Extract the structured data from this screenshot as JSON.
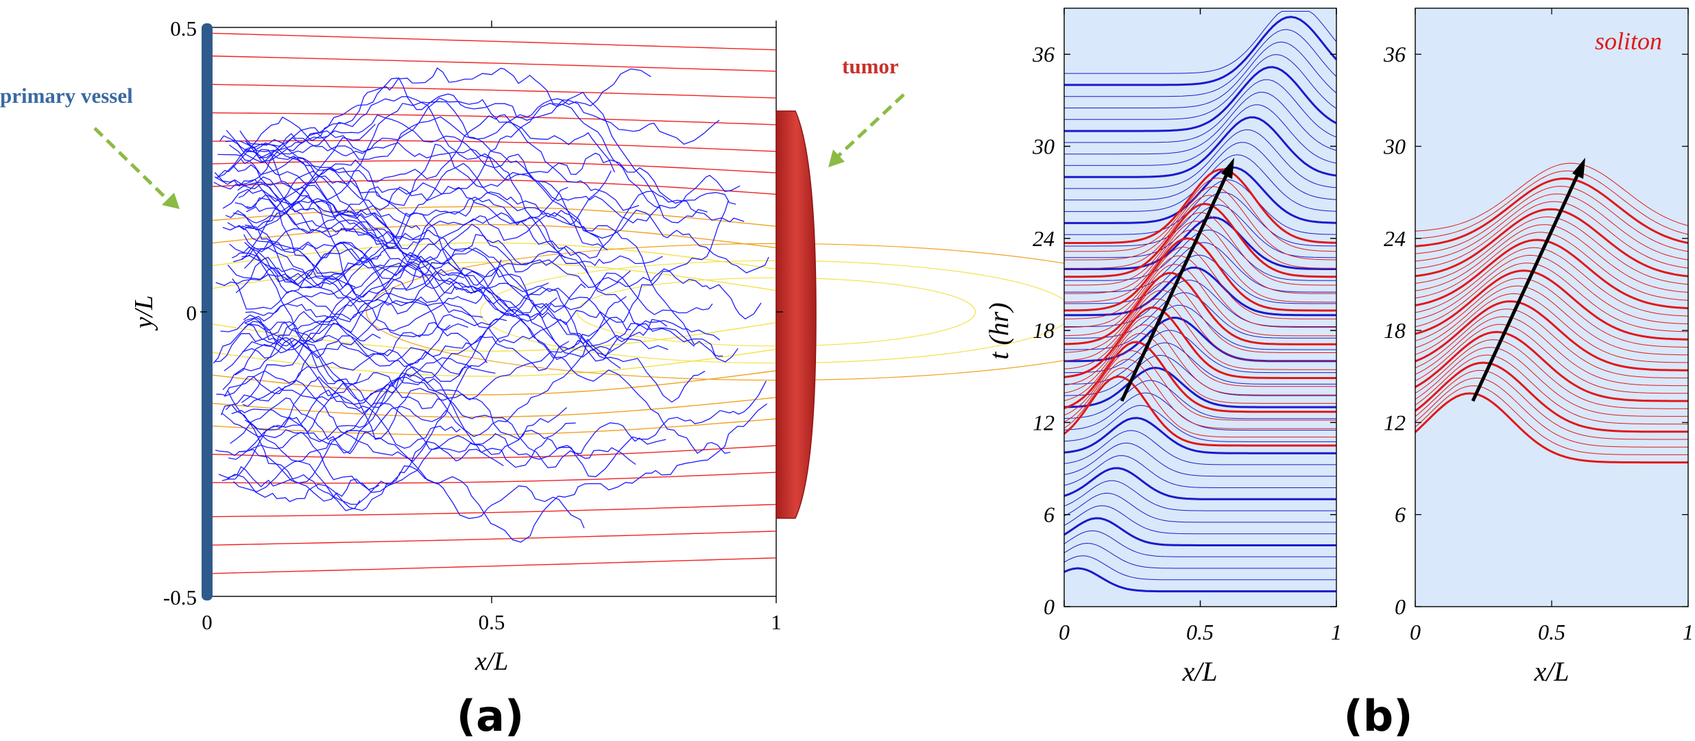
{
  "figure": {
    "panel_a_label": "(a)",
    "panel_b_label": "(b)"
  },
  "panel_a": {
    "annotations": {
      "vessel_label": "primary vessel",
      "tumor_label": "tumor"
    },
    "colors": {
      "vessel": "#2f5b8c",
      "tumor": "#c8312c",
      "sprouts": "#1a1aff",
      "contour_outer": "#ee2222",
      "contour_mid": "#f0a020",
      "contour_inner": "#f4e04a",
      "arrow": "#8bbb44"
    }
  },
  "panel_b": {
    "legend_label": "soliton",
    "colors": {
      "background": "#d9e8fa",
      "blue_curves": "#1a1acc",
      "red_curves": "#e01818",
      "arrow": "#000000"
    }
  },
  "chart_data": [
    {
      "type": "line",
      "title": "",
      "xlabel": "x/L",
      "ylabel": "y/L",
      "xlim": [
        0,
        1
      ],
      "ylim": [
        -0.5,
        0.5
      ],
      "x_ticks": [
        "0",
        "0.5",
        "1"
      ],
      "y_ticks": [
        "-0.5",
        "0",
        "0.5"
      ],
      "series": [
        {
          "values": [
            0.49,
            0.45,
            0.4,
            0.35,
            0.3,
            0.26,
            0.22,
            0.16,
            0.12,
            0.08,
            0.04,
            -0.02,
            -0.07,
            -0.11,
            -0.16,
            -0.2,
            -0.25,
            -0.3,
            -0.36,
            -0.41,
            -0.46
          ]
        }
      ]
    },
    {
      "type": "line",
      "title": "",
      "xlabel": "x/L",
      "ylabel": "t (hr)",
      "xlim": [
        0,
        1
      ],
      "ylim": [
        0,
        39
      ],
      "x_ticks": [
        "0",
        "0.5",
        "1"
      ],
      "y_ticks": [
        "0",
        "6",
        "12",
        "18",
        "24",
        "30",
        "36"
      ],
      "series": [
        {
          "values": [
            1.0,
            35.0
          ]
        },
        {
          "values": [
            10.5,
            23.6
          ]
        }
      ]
    },
    {
      "type": "line",
      "title": "",
      "xlabel": "x/L",
      "ylabel": "",
      "xlim": [
        0,
        1
      ],
      "ylim": [
        0,
        39
      ],
      "x_ticks": [
        "0",
        "0.5",
        "1"
      ],
      "y_ticks": [
        "0",
        "6",
        "12",
        "18",
        "24",
        "30",
        "36"
      ],
      "series": [
        {
          "values": [
            9.4,
            24.5
          ]
        }
      ]
    }
  ]
}
